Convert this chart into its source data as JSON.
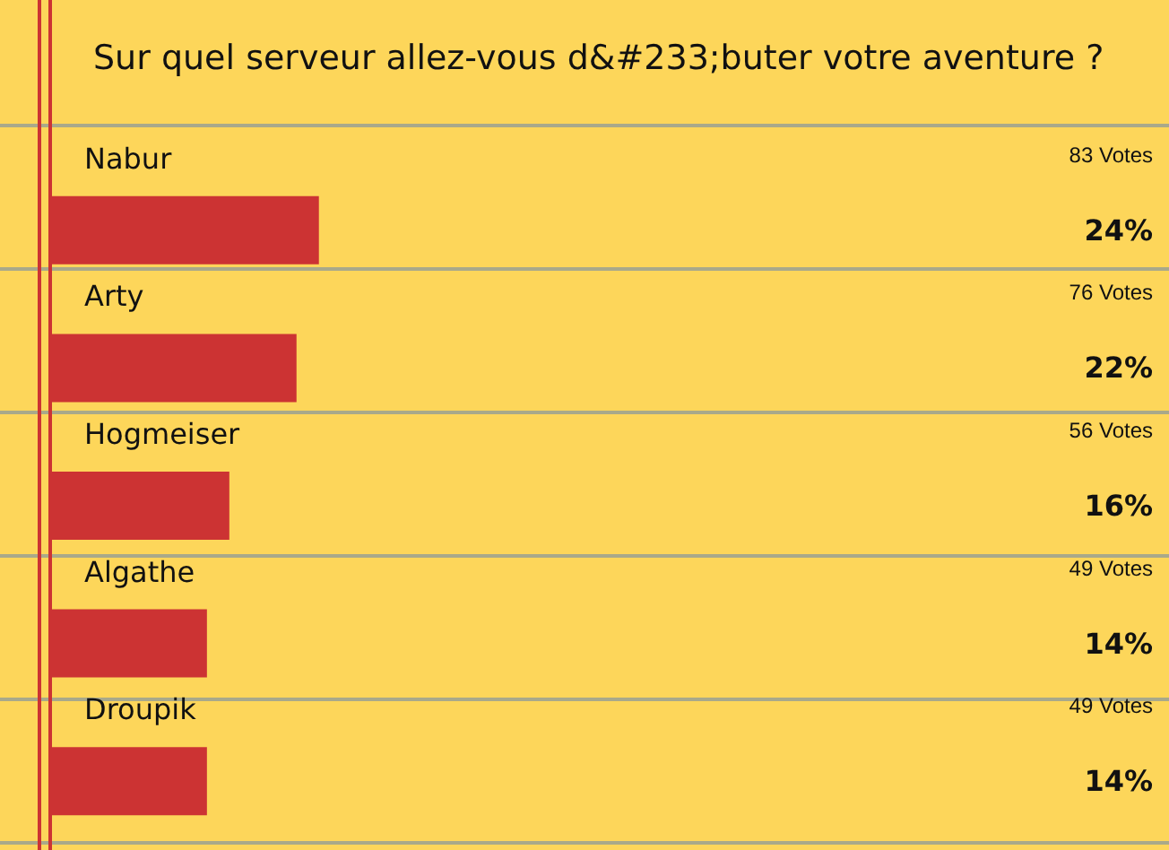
{
  "chart_data": {
    "type": "bar",
    "orientation": "horizontal",
    "title": "Sur quel serveur allez-vous d&#233;buter votre aventure ?",
    "categories": [
      "Nabur",
      "Arty",
      "Hogmeiser",
      "Algathe",
      "Droupik"
    ],
    "values": [
      24,
      22,
      16,
      14,
      14
    ],
    "value_labels": [
      "24%",
      "22%",
      "16%",
      "14%",
      "14%"
    ],
    "color": "#cc3333",
    "annotations": [
      "83 Votes",
      "76 Votes",
      "56 Votes",
      "49 Votes",
      "49 Votes"
    ]
  }
}
